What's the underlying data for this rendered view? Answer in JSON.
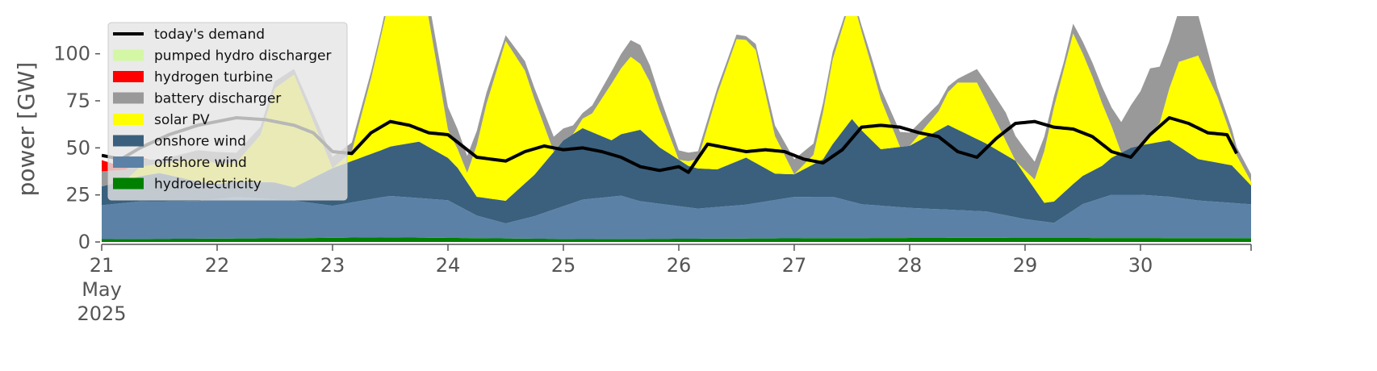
{
  "chart_data": {
    "type": "area",
    "ylabel": "power [GW]",
    "ylim": [
      0,
      120
    ],
    "xlim": [
      0,
      239
    ],
    "x_step_hours": 1,
    "y_ticks": [
      0,
      25,
      50,
      75,
      100
    ],
    "x_ticks": [
      {
        "x": 0,
        "label": "21",
        "sub": [
          "May",
          "2025"
        ]
      },
      {
        "x": 24,
        "label": "22"
      },
      {
        "x": 48,
        "label": "23"
      },
      {
        "x": 72,
        "label": "24"
      },
      {
        "x": 96,
        "label": "25"
      },
      {
        "x": 120,
        "label": "26"
      },
      {
        "x": 144,
        "label": "27"
      },
      {
        "x": 168,
        "label": "28"
      },
      {
        "x": 192,
        "label": "29"
      },
      {
        "x": 216,
        "label": "30"
      }
    ],
    "legend_position": "top-left",
    "legend": [
      {
        "key": "demand",
        "name": "today's demand",
        "kind": "line"
      },
      {
        "key": "pumped",
        "name": "pumped hydro discharger",
        "kind": "patch"
      },
      {
        "key": "hydrogen",
        "name": "hydrogen turbine",
        "kind": "patch"
      },
      {
        "key": "battery",
        "name": "battery discharger",
        "kind": "patch"
      },
      {
        "key": "solar",
        "name": "solar PV",
        "kind": "patch"
      },
      {
        "key": "onshore",
        "name": "onshore wind",
        "kind": "patch"
      },
      {
        "key": "offshore",
        "name": "offshore wind",
        "kind": "patch"
      },
      {
        "key": "hydro",
        "name": "hydroelectricity",
        "kind": "patch"
      }
    ],
    "colors": {
      "hydro": "#008000",
      "offshore": "#5b82a6",
      "onshore": "#3a607e",
      "solar": "#ffff00",
      "battery": "#999999",
      "hydrogen": "#ff0000",
      "pumped": "#d4f7a6",
      "demand": "#000000"
    },
    "stack_order": [
      "hydro",
      "offshore",
      "onshore",
      "solar",
      "battery",
      "hydrogen",
      "pumped"
    ],
    "keyframes": {
      "hydro": [
        [
          0,
          1.5
        ],
        [
          40,
          2
        ],
        [
          58,
          2.5
        ],
        [
          100,
          1.5
        ],
        [
          150,
          2
        ],
        [
          180,
          2.2
        ],
        [
          239,
          2
        ]
      ],
      "offshore": [
        [
          0,
          18
        ],
        [
          8,
          20
        ],
        [
          20,
          20
        ],
        [
          28,
          22
        ],
        [
          40,
          20
        ],
        [
          48,
          17
        ],
        [
          60,
          22
        ],
        [
          72,
          20
        ],
        [
          78,
          12
        ],
        [
          84,
          8
        ],
        [
          90,
          12
        ],
        [
          100,
          21
        ],
        [
          108,
          23
        ],
        [
          112,
          20
        ],
        [
          118,
          18
        ],
        [
          124,
          16
        ],
        [
          134,
          18
        ],
        [
          144,
          22
        ],
        [
          152,
          22
        ],
        [
          158,
          18
        ],
        [
          168,
          16
        ],
        [
          176,
          15
        ],
        [
          184,
          14
        ],
        [
          192,
          10
        ],
        [
          198,
          8
        ],
        [
          204,
          18
        ],
        [
          210,
          23
        ],
        [
          216,
          23
        ],
        [
          222,
          22
        ],
        [
          228,
          20
        ],
        [
          239,
          18
        ]
      ],
      "onshore": [
        [
          0,
          10
        ],
        [
          12,
          15
        ],
        [
          24,
          8
        ],
        [
          36,
          9
        ],
        [
          40,
          7
        ],
        [
          48,
          20
        ],
        [
          58,
          25
        ],
        [
          66,
          30
        ],
        [
          74,
          20
        ],
        [
          78,
          10
        ],
        [
          84,
          12
        ],
        [
          90,
          22
        ],
        [
          96,
          35
        ],
        [
          100,
          38
        ],
        [
          106,
          30
        ],
        [
          112,
          38
        ],
        [
          116,
          30
        ],
        [
          122,
          22
        ],
        [
          128,
          20
        ],
        [
          134,
          25
        ],
        [
          140,
          14
        ],
        [
          144,
          12
        ],
        [
          150,
          20
        ],
        [
          156,
          44
        ],
        [
          162,
          30
        ],
        [
          168,
          33
        ],
        [
          176,
          45
        ],
        [
          184,
          36
        ],
        [
          190,
          30
        ],
        [
          196,
          10
        ],
        [
          202,
          14
        ],
        [
          208,
          17
        ],
        [
          214,
          25
        ],
        [
          222,
          30
        ],
        [
          228,
          22
        ],
        [
          235,
          20
        ],
        [
          239,
          10
        ]
      ],
      "solar": [
        [
          0,
          0
        ],
        [
          5,
          0
        ],
        [
          8,
          5
        ],
        [
          12,
          5
        ],
        [
          20,
          12
        ],
        [
          28,
          10
        ],
        [
          33,
          25
        ],
        [
          36,
          50
        ],
        [
          40,
          60
        ],
        [
          44,
          30
        ],
        [
          48,
          0
        ],
        [
          52,
          5
        ],
        [
          56,
          40
        ],
        [
          60,
          80
        ],
        [
          66,
          95
        ],
        [
          72,
          15
        ],
        [
          76,
          5
        ],
        [
          80,
          50
        ],
        [
          84,
          85
        ],
        [
          88,
          60
        ],
        [
          94,
          0
        ],
        [
          98,
          0
        ],
        [
          102,
          10
        ],
        [
          106,
          30
        ],
        [
          110,
          40
        ],
        [
          114,
          30
        ],
        [
          120,
          0
        ],
        [
          124,
          5
        ],
        [
          128,
          40
        ],
        [
          132,
          65
        ],
        [
          136,
          60
        ],
        [
          140,
          20
        ],
        [
          144,
          0
        ],
        [
          148,
          5
        ],
        [
          152,
          45
        ],
        [
          156,
          65
        ],
        [
          160,
          40
        ],
        [
          166,
          0
        ],
        [
          168,
          0
        ],
        [
          174,
          10
        ],
        [
          178,
          25
        ],
        [
          182,
          30
        ],
        [
          186,
          15
        ],
        [
          190,
          0
        ],
        [
          194,
          5
        ],
        [
          198,
          50
        ],
        [
          202,
          80
        ],
        [
          206,
          50
        ],
        [
          212,
          0
        ],
        [
          216,
          0
        ],
        [
          220,
          10
        ],
        [
          224,
          45
        ],
        [
          228,
          55
        ],
        [
          232,
          35
        ],
        [
          236,
          8
        ],
        [
          239,
          2
        ]
      ],
      "battery": [
        [
          0,
          8
        ],
        [
          12,
          2
        ],
        [
          24,
          6
        ],
        [
          40,
          3
        ],
        [
          48,
          6
        ],
        [
          58,
          3
        ],
        [
          72,
          12
        ],
        [
          84,
          3
        ],
        [
          94,
          8
        ],
        [
          100,
          3
        ],
        [
          112,
          10
        ],
        [
          120,
          5
        ],
        [
          134,
          2
        ],
        [
          144,
          8
        ],
        [
          156,
          2
        ],
        [
          166,
          8
        ],
        [
          178,
          2
        ],
        [
          188,
          15
        ],
        [
          200,
          4
        ],
        [
          210,
          10
        ],
        [
          218,
          35
        ],
        [
          222,
          25
        ],
        [
          226,
          30
        ],
        [
          232,
          5
        ],
        [
          239,
          4
        ]
      ],
      "hydrogen": [
        [
          0,
          6
        ],
        [
          3,
          3
        ],
        [
          6,
          2
        ],
        [
          10,
          0
        ],
        [
          239,
          0
        ]
      ],
      "pumped": [
        [
          0,
          0
        ],
        [
          239,
          0
        ]
      ],
      "demand": [
        [
          0,
          46
        ],
        [
          4,
          44
        ],
        [
          8,
          50
        ],
        [
          14,
          57
        ],
        [
          20,
          62
        ],
        [
          28,
          66
        ],
        [
          34,
          65
        ],
        [
          40,
          62
        ],
        [
          44,
          58
        ],
        [
          48,
          48
        ],
        [
          52,
          47
        ],
        [
          56,
          58
        ],
        [
          60,
          64
        ],
        [
          64,
          62
        ],
        [
          68,
          58
        ],
        [
          72,
          57
        ],
        [
          78,
          45
        ],
        [
          84,
          43
        ],
        [
          88,
          48
        ],
        [
          92,
          51
        ],
        [
          96,
          49
        ],
        [
          100,
          50
        ],
        [
          104,
          48
        ],
        [
          108,
          45
        ],
        [
          112,
          40
        ],
        [
          116,
          38
        ],
        [
          120,
          40
        ],
        [
          122,
          37
        ],
        [
          126,
          52
        ],
        [
          130,
          50
        ],
        [
          134,
          48
        ],
        [
          138,
          49
        ],
        [
          142,
          48
        ],
        [
          146,
          44
        ],
        [
          150,
          42
        ],
        [
          154,
          49
        ],
        [
          158,
          61
        ],
        [
          162,
          62
        ],
        [
          166,
          61
        ],
        [
          170,
          58
        ],
        [
          174,
          56
        ],
        [
          178,
          48
        ],
        [
          182,
          45
        ],
        [
          186,
          55
        ],
        [
          190,
          63
        ],
        [
          194,
          64
        ],
        [
          198,
          61
        ],
        [
          202,
          60
        ],
        [
          206,
          56
        ],
        [
          210,
          48
        ],
        [
          214,
          45
        ],
        [
          218,
          57
        ],
        [
          222,
          66
        ],
        [
          226,
          63
        ],
        [
          230,
          58
        ],
        [
          234,
          57
        ],
        [
          236,
          47
        ]
      ]
    }
  }
}
